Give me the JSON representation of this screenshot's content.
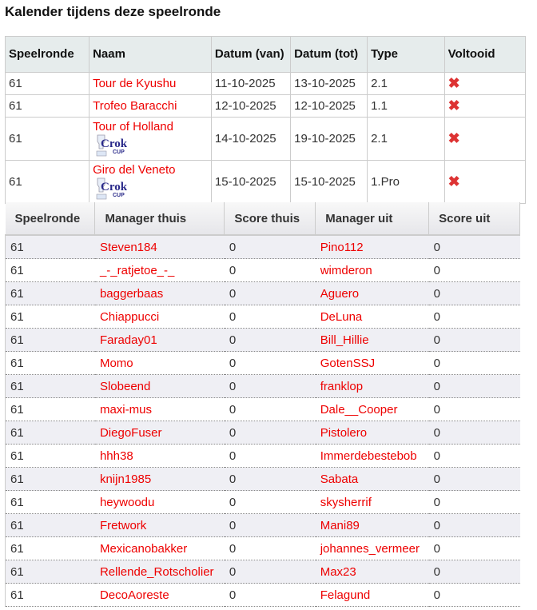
{
  "title": "Kalender tijdens deze speelronde",
  "calendar": {
    "headers": [
      "Speelronde",
      "Naam",
      "Datum (van)",
      "Datum (tot)",
      "Type",
      "Voltooid"
    ],
    "rows": [
      {
        "round": "61",
        "name": "Tour de Kyushu",
        "from": "11-10-2025",
        "to": "13-10-2025",
        "type": "2.1",
        "cup": false,
        "done": false
      },
      {
        "round": "61",
        "name": "Trofeo Baracchi",
        "from": "12-10-2025",
        "to": "12-10-2025",
        "type": "1.1",
        "cup": false,
        "done": false
      },
      {
        "round": "61",
        "name": "Tour of Holland",
        "from": "14-10-2025",
        "to": "19-10-2025",
        "type": "2.1",
        "cup": true,
        "done": false
      },
      {
        "round": "61",
        "name": "Giro del Veneto",
        "from": "15-10-2025",
        "to": "15-10-2025",
        "type": "1.Pro",
        "cup": true,
        "done": false
      }
    ],
    "cup_logo": "Croky CUP",
    "done_icon": "cross-mark-icon"
  },
  "games": {
    "headers": [
      "Speelronde",
      "Manager thuis",
      "Score thuis",
      "Manager uit",
      "Score uit"
    ],
    "rows": [
      [
        "61",
        "Steven184",
        "0",
        "Pino112",
        "0"
      ],
      [
        "61",
        "_-_ratjetoe_-_",
        "0",
        "wimderon",
        "0"
      ],
      [
        "61",
        "baggerbaas",
        "0",
        "Aguero",
        "0"
      ],
      [
        "61",
        "Chiappucci",
        "0",
        "DeLuna",
        "0"
      ],
      [
        "61",
        "Faraday01",
        "0",
        "Bill_Hillie",
        "0"
      ],
      [
        "61",
        "Momo",
        "0",
        "GotenSSJ",
        "0"
      ],
      [
        "61",
        "Slobeend",
        "0",
        "franklop",
        "0"
      ],
      [
        "61",
        "maxi-mus",
        "0",
        "Dale__Cooper",
        "0"
      ],
      [
        "61",
        "DiegoFuser",
        "0",
        "Pistolero",
        "0"
      ],
      [
        "61",
        "hhh38",
        "0",
        "Immerdebestebob",
        "0"
      ],
      [
        "61",
        "knijn1985",
        "0",
        "Sabata",
        "0"
      ],
      [
        "61",
        "heywoodu",
        "0",
        "skysherrif",
        "0"
      ],
      [
        "61",
        "Fretwork",
        "0",
        "Mani89",
        "0"
      ],
      [
        "61",
        "Mexicanobakker",
        "0",
        "johannes_vermeer",
        "0"
      ],
      [
        "61",
        "Rellende_Rotscholier",
        "0",
        "Max23",
        "0"
      ],
      [
        "61",
        "DecoAoreste",
        "0",
        "Felagund",
        "0"
      ]
    ]
  }
}
